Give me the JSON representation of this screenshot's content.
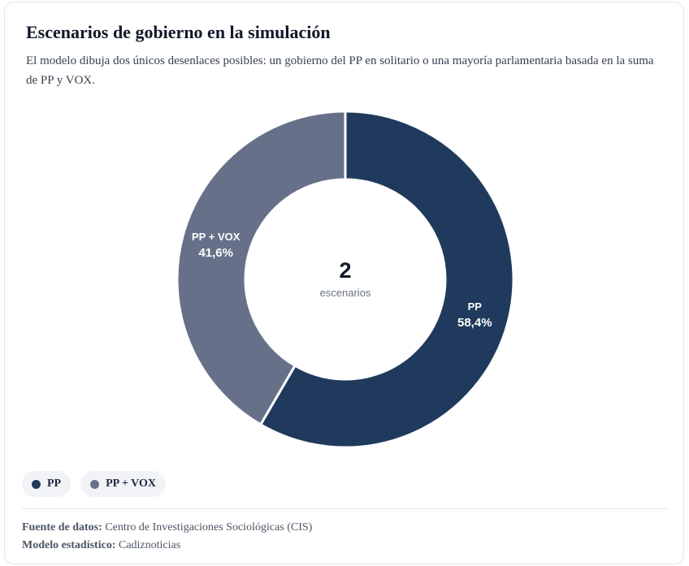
{
  "header": {
    "title": "Escenarios de gobierno en la simulación",
    "subtitle": "El modelo dibuja dos únicos desenlaces posibles: un gobierno del PP en solitario o una mayoría parlamentaria basada en la suma de PP y VOX."
  },
  "chart_data": {
    "type": "pie",
    "variant": "donut",
    "title": "Escenarios de gobierno en la simulación",
    "categories": [
      "PP",
      "PP + VOX"
    ],
    "values": [
      58.4,
      41.6
    ],
    "value_labels": [
      "58,4%",
      "41,6%"
    ],
    "colors": [
      "#1f3a5c",
      "#667189"
    ],
    "center_value": "2",
    "center_label": "escenarios",
    "legend_position": "bottom-left"
  },
  "legend": {
    "items": [
      {
        "label": "PP",
        "color": "#1f3a5c"
      },
      {
        "label": "PP + VOX",
        "color": "#667189"
      }
    ]
  },
  "footer": {
    "source_label": "Fuente de datos:",
    "source_value": "Centro de Investigaciones Sociológicas (CIS)",
    "model_label": "Modelo estadístico:",
    "model_value": "Cadiznoticias"
  }
}
